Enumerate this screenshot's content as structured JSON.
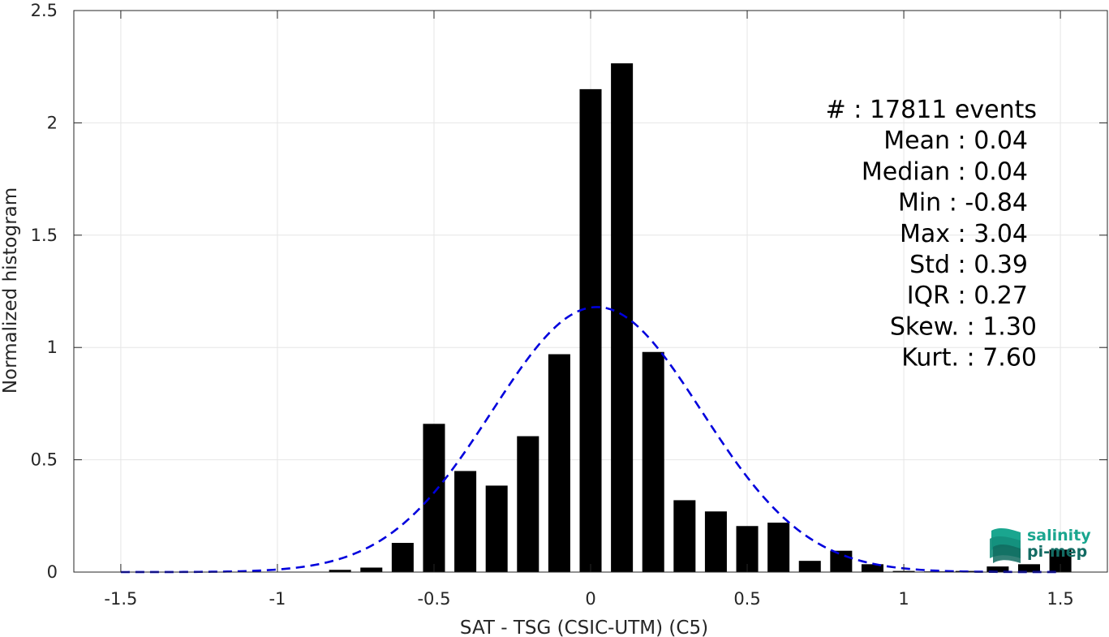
{
  "chart_data": {
    "type": "bar",
    "xlabel": "SAT - TSG (CSIC-UTM) (C5)",
    "ylabel": "Normalized histogram",
    "xlim": [
      -1.65,
      1.65
    ],
    "ylim": [
      0,
      2.5
    ],
    "xticks": [
      -1.5,
      -1,
      -0.5,
      0,
      0.5,
      1,
      1.5
    ],
    "xtick_labels": [
      "-1.5",
      "-1",
      "-0.5",
      "0",
      "0.5",
      "1",
      "1.5"
    ],
    "yticks": [
      0,
      0.5,
      1,
      1.5,
      2,
      2.5
    ],
    "ytick_labels": [
      "0",
      "0.5",
      "1",
      "1.5",
      "2",
      "2.5"
    ],
    "grid": true,
    "bin_width": 0.1,
    "bar_color": "#000000",
    "fit_color": "#0000dd",
    "bars": {
      "x": [
        -0.8,
        -0.7,
        -0.6,
        -0.5,
        -0.4,
        -0.3,
        -0.2,
        -0.1,
        0.0,
        0.1,
        0.2,
        0.3,
        0.4,
        0.5,
        0.6,
        0.7,
        0.8,
        0.9,
        1.0,
        1.1,
        1.2,
        1.3,
        1.4,
        1.5
      ],
      "values": [
        0.01,
        0.02,
        0.13,
        0.66,
        0.45,
        0.385,
        0.605,
        0.97,
        2.15,
        2.265,
        0.98,
        0.32,
        0.27,
        0.205,
        0.22,
        0.05,
        0.095,
        0.035,
        0.005,
        0.003,
        0.005,
        0.025,
        0.035,
        0.1
      ]
    },
    "fit": {
      "style": "dashed",
      "mean": 0.02,
      "std": 0.335,
      "peak": 1.18
    },
    "stats_lines": [
      {
        "label": "#  : 17811 events"
      },
      {
        "label": "Mean : 0.04"
      },
      {
        "label": "Median : 0.04"
      },
      {
        "label": "Min : -0.84"
      },
      {
        "label": "Max : 3.04"
      },
      {
        "label": "Std : 0.39"
      },
      {
        "label": "IQR : 0.27"
      },
      {
        "label": "Skew. : 1.30"
      },
      {
        "label": "Kurt. : 7.60"
      }
    ]
  },
  "logo": {
    "line1": "salinity",
    "line2": "pi-mep",
    "color1": "#1aa68f",
    "color2": "#136b63"
  }
}
